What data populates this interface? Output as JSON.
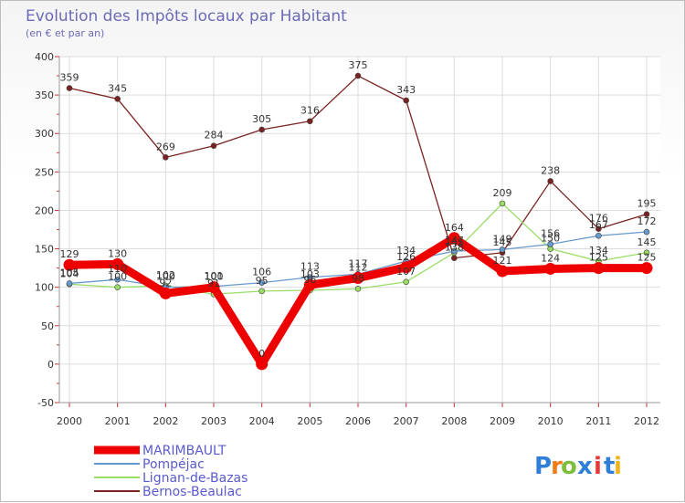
{
  "chart_data": {
    "type": "line",
    "title": "Evolution des Impôts locaux par Habitant",
    "subtitle": "(en € et par an)",
    "xlabel": "",
    "ylabel": "",
    "categories": [
      "2000",
      "2001",
      "2002",
      "2003",
      "2004",
      "2005",
      "2006",
      "2007",
      "2008",
      "2009",
      "2010",
      "2011",
      "2012"
    ],
    "ylim": [
      -50,
      400
    ],
    "yticks": [
      -50,
      0,
      50,
      100,
      150,
      200,
      250,
      300,
      350,
      400
    ],
    "grid": true,
    "legend_position": "bottom-left",
    "series": [
      {
        "name": "MARIMBAULT",
        "color": "#ee0000",
        "values": [
          129,
          130,
          92,
          100,
          0,
          103,
          112,
          126,
          164,
          121,
          124,
          125,
          125
        ],
        "labels": [
          "129",
          "130",
          "92",
          "100",
          "0",
          "103",
          "112",
          "126",
          "164",
          "121",
          "124",
          "125",
          "125"
        ]
      },
      {
        "name": "Pompéjac",
        "color": "#6699cc",
        "values": [
          105,
          110,
          100,
          101,
          106,
          113,
          117,
          134,
          147,
          149,
          156,
          167,
          172
        ],
        "labels": [
          "105",
          "110",
          "100",
          "101",
          "106",
          "113",
          "117",
          "134",
          "147",
          "149",
          "156",
          "167",
          "172"
        ]
      },
      {
        "name": "Lignan-de-Bazas",
        "color": "#99dd66",
        "values": [
          104,
          100,
          102,
          91,
          95,
          96,
          98,
          107,
          145,
          209,
          150,
          134,
          145
        ],
        "labels": [
          "104",
          "100",
          "102",
          "91",
          "95",
          "96",
          "98",
          "107",
          "145",
          "209",
          "150",
          "134",
          "145"
        ]
      },
      {
        "name": "Bernos-Beaulac",
        "color": "#7a2222",
        "values": [
          359,
          345,
          269,
          284,
          305,
          316,
          375,
          343,
          138,
          145,
          238,
          176,
          195
        ],
        "labels": [
          "359",
          "345",
          "269",
          "284",
          "305",
          "316",
          "375",
          "343",
          "138",
          "145",
          "238",
          "176",
          "195"
        ]
      }
    ]
  },
  "brand": {
    "name": "Proxiti",
    "letters": [
      "P",
      "r",
      "o",
      "x",
      "i",
      "t",
      "i"
    ]
  }
}
